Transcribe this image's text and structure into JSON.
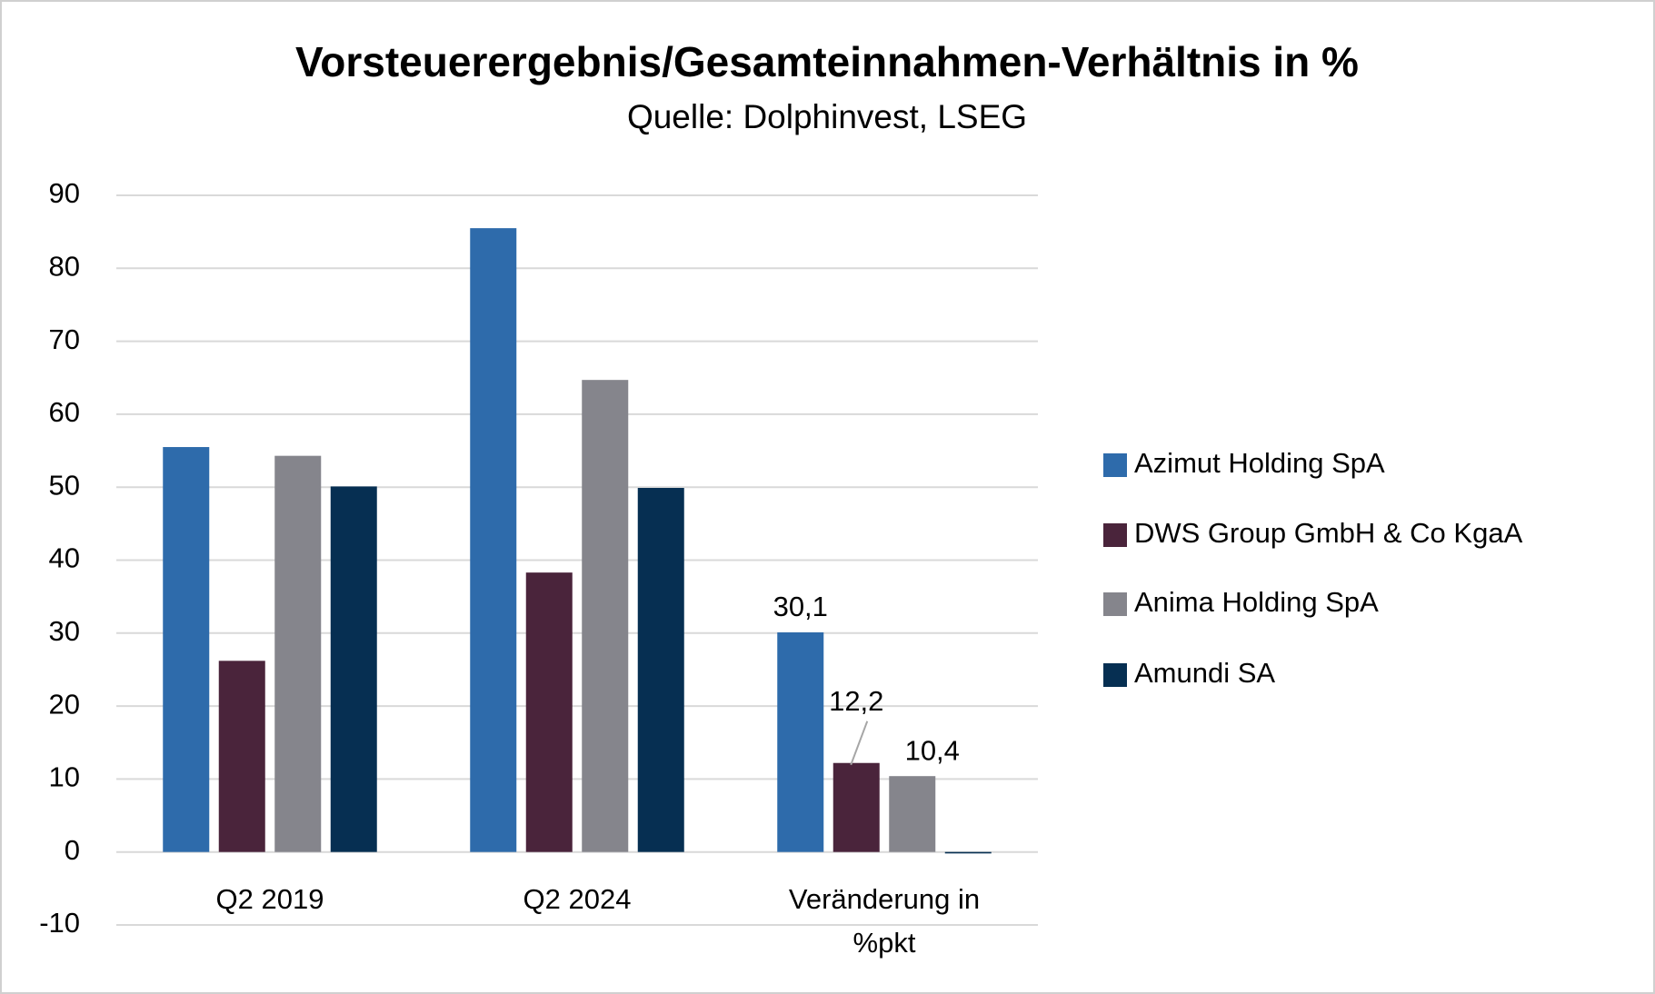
{
  "chart_data": {
    "type": "bar",
    "title": "Vorsteuerergebnis/Gesamteinnahmen-Verhältnis in %",
    "subtitle": "Quelle: Dolphinvest, LSEG",
    "categories": [
      "Q2 2019",
      "Q2 2024",
      "Veränderung in %pkt"
    ],
    "series": [
      {
        "name": "Azimut Holding SpA",
        "color": "#2e6bab",
        "values": [
          55.5,
          85.5,
          30.1
        ],
        "value_labels": [
          null,
          null,
          "30,1"
        ]
      },
      {
        "name": "DWS Group GmbH & Co KgaA",
        "color": "#4a243b",
        "values": [
          26.2,
          38.3,
          12.2
        ],
        "value_labels": [
          null,
          null,
          "12,2"
        ]
      },
      {
        "name": "Anima Holding SpA",
        "color": "#85858c",
        "values": [
          54.3,
          64.7,
          10.4
        ],
        "value_labels": [
          null,
          null,
          "10,4"
        ]
      },
      {
        "name": "Amundi SA",
        "color": "#062f52",
        "values": [
          50.1,
          49.9,
          -0.2
        ]
      }
    ],
    "ylim": [
      -10,
      90
    ],
    "yticks": [
      -10,
      0,
      10,
      20,
      30,
      40,
      50,
      60,
      70,
      80,
      90
    ],
    "grid": true,
    "legend": "right"
  }
}
